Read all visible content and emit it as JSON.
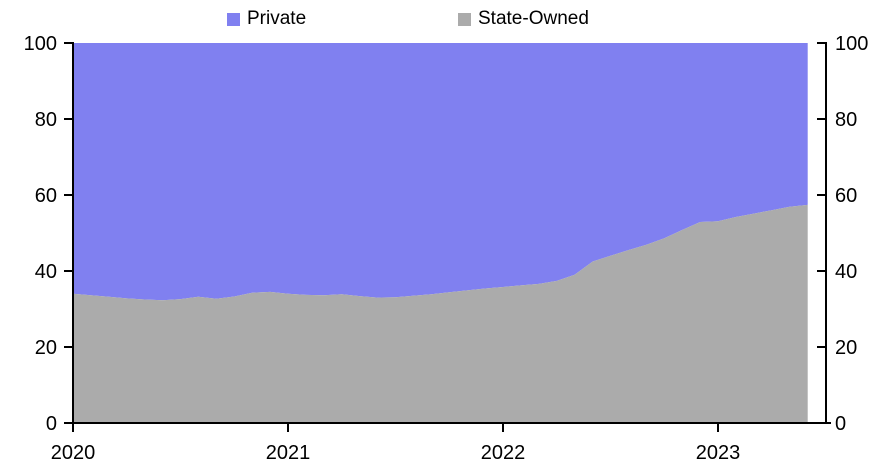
{
  "legend": {
    "items": [
      {
        "label": "Private",
        "color": "#8080F0"
      },
      {
        "label": "State-Owned",
        "color": "#ABABAB"
      }
    ]
  },
  "axes": {
    "left_tick_labels": [
      "0",
      "20",
      "40",
      "60",
      "80",
      "100"
    ],
    "right_tick_labels": [
      "0",
      "20",
      "40",
      "60",
      "80",
      "100"
    ],
    "x_tick_labels": [
      "2020",
      "2021",
      "2022",
      "2023"
    ]
  },
  "chart_data": {
    "type": "area",
    "stacked": true,
    "stack_total": 100,
    "title": "",
    "xlabel": "",
    "ylabel": "",
    "ylim": [
      0,
      100
    ],
    "y_ticks": [
      0,
      20,
      40,
      60,
      80,
      100
    ],
    "x_tick_labels": [
      "2020",
      "2021",
      "2022",
      "2023"
    ],
    "legend_position": "top",
    "axis_color": "#000000",
    "x": [
      2020.0,
      2020.083,
      2020.167,
      2020.25,
      2020.333,
      2020.417,
      2020.5,
      2020.583,
      2020.667,
      2020.75,
      2020.833,
      2020.917,
      2021.0,
      2021.083,
      2021.167,
      2021.25,
      2021.333,
      2021.417,
      2021.5,
      2021.583,
      2021.667,
      2021.75,
      2021.833,
      2021.917,
      2022.0,
      2022.083,
      2022.167,
      2022.25,
      2022.333,
      2022.417,
      2022.5,
      2022.583,
      2022.667,
      2022.75,
      2022.833,
      2022.917,
      2023.0,
      2023.083,
      2023.167,
      2023.25,
      2023.333,
      2023.417
    ],
    "series": [
      {
        "name": "Private",
        "color": "#8080F0",
        "values": [
          66.0,
          66.4,
          66.8,
          67.2,
          67.5,
          67.7,
          67.4,
          66.8,
          67.3,
          66.7,
          65.7,
          65.5,
          66.0,
          66.3,
          66.4,
          66.1,
          66.6,
          67.0,
          66.9,
          66.5,
          66.1,
          65.6,
          65.1,
          64.6,
          64.2,
          63.8,
          63.4,
          62.6,
          61.0,
          57.5,
          56.0,
          54.5,
          53.1,
          51.4,
          49.2,
          47.1,
          46.9,
          45.8,
          44.9,
          44.0,
          43.1,
          42.6
        ]
      },
      {
        "name": "State-Owned",
        "color": "#ABABAB",
        "values": [
          34.0,
          33.6,
          33.2,
          32.8,
          32.5,
          32.3,
          32.6,
          33.2,
          32.7,
          33.3,
          34.3,
          34.5,
          34.0,
          33.7,
          33.6,
          33.9,
          33.4,
          33.0,
          33.1,
          33.5,
          33.9,
          34.4,
          34.9,
          35.4,
          35.8,
          36.2,
          36.6,
          37.4,
          39.0,
          42.5,
          44.0,
          45.5,
          46.9,
          48.6,
          50.8,
          52.9,
          53.1,
          54.2,
          55.1,
          56.0,
          56.9,
          57.4
        ]
      }
    ]
  }
}
